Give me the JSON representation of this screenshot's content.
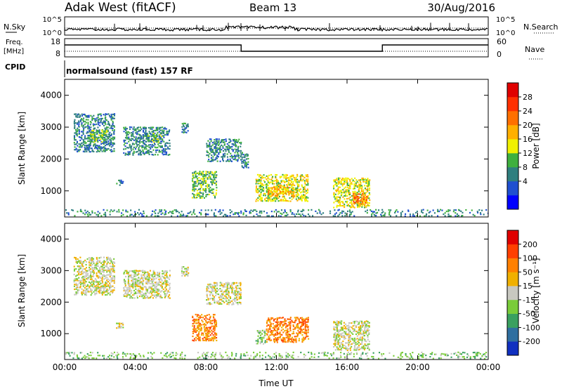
{
  "header": {
    "station": "Adak West (fitACF)",
    "beam": "Beam 13",
    "date": "30/Aug/2016"
  },
  "panels": {
    "nsky": {
      "left_label": "N.Sky",
      "right_label": "N.Search",
      "left_ticks": [
        "10^5",
        "10^0"
      ],
      "right_ticks": [
        "10^5",
        "10^0"
      ]
    },
    "freq": {
      "left_label_1": "Freq.",
      "left_label_2": "[MHz]",
      "right_label": "Nave",
      "left_ticks": [
        "18",
        "8"
      ],
      "right_ticks": [
        "60",
        "0"
      ]
    },
    "cpid": {
      "label": "CPID",
      "text": "normalsound (fast) 157 RF"
    }
  },
  "chart_data": [
    {
      "type": "heatmap",
      "name": "power",
      "ylabel": "Slant Range [km]",
      "xlabel": "Time UT",
      "x_ticks": [
        "00:00",
        "04:00",
        "08:00",
        "12:00",
        "16:00",
        "20:00",
        "00:00"
      ],
      "xlim_hours": [
        0,
        24
      ],
      "y_ticks": [
        1000,
        2000,
        3000,
        4000
      ],
      "ylim": [
        180,
        4500
      ],
      "colorbar_label": "Power [dB]",
      "colorbar_ticks": [
        "28",
        "24",
        "20",
        "16",
        "12",
        "8",
        "4"
      ],
      "colorbar_colors": [
        "#0000ff",
        "#1f4fd0",
        "#2f7f7f",
        "#3fb03f",
        "#f0f000",
        "#ffb000",
        "#ff7000",
        "#ff3000",
        "#e00000"
      ],
      "regions": [
        {
          "t0": 0.5,
          "t1": 2.8,
          "r0": 2200,
          "r1": 3400,
          "level": 2
        },
        {
          "t0": 1.4,
          "t1": 2.5,
          "r0": 2500,
          "r1": 2900,
          "level": 3
        },
        {
          "t0": 2.9,
          "t1": 3.3,
          "r0": 1150,
          "r1": 1350,
          "level": 2
        },
        {
          "t0": 3.3,
          "t1": 6.0,
          "r0": 2100,
          "r1": 3000,
          "level": 2
        },
        {
          "t0": 4.5,
          "t1": 5.5,
          "r0": 2500,
          "r1": 2800,
          "level": 3
        },
        {
          "t0": 6.6,
          "t1": 7.0,
          "r0": 2800,
          "r1": 3100,
          "level": 2
        },
        {
          "t0": 7.2,
          "t1": 8.6,
          "r0": 750,
          "r1": 1600,
          "level": 3
        },
        {
          "t0": 8.0,
          "t1": 10.0,
          "r0": 1900,
          "r1": 2600,
          "level": 2
        },
        {
          "t0": 10.0,
          "t1": 10.4,
          "r0": 1700,
          "r1": 2200,
          "level": 2
        },
        {
          "t0": 10.8,
          "t1": 13.8,
          "r0": 650,
          "r1": 1500,
          "level": 4
        },
        {
          "t0": 11.5,
          "t1": 13.0,
          "r0": 800,
          "r1": 1100,
          "level": 5
        },
        {
          "t0": 15.2,
          "t1": 17.3,
          "r0": 450,
          "r1": 1400,
          "level": 4
        },
        {
          "t0": 16.3,
          "t1": 17.1,
          "r0": 550,
          "r1": 900,
          "level": 6
        },
        {
          "t0": 0.0,
          "t1": 24.0,
          "r0": 180,
          "r1": 420,
          "level": 2
        }
      ]
    },
    {
      "type": "heatmap",
      "name": "velocity",
      "ylabel": "Slant Range [km]",
      "xlabel": "Time UT",
      "x_ticks": [
        "00:00",
        "04:00",
        "08:00",
        "12:00",
        "16:00",
        "20:00",
        "00:00"
      ],
      "xlim_hours": [
        0,
        24
      ],
      "y_ticks": [
        1000,
        2000,
        3000,
        4000
      ],
      "ylim": [
        180,
        4500
      ],
      "colorbar_label": "Velocity [m s⁻¹]",
      "colorbar_ticks": [
        "200",
        "100",
        "50",
        "15",
        "-15",
        "-50",
        "-100",
        "-200"
      ],
      "colorbar_colors": [
        "#1030c0",
        "#2f6fa0",
        "#3aa060",
        "#7acc3a",
        "#c8c8c0",
        "#f0b000",
        "#ff8000",
        "#ff4000",
        "#e00000"
      ],
      "regions": [
        {
          "t0": 0.5,
          "t1": 2.8,
          "r0": 2200,
          "r1": 3400,
          "level": 4
        },
        {
          "t0": 2.9,
          "t1": 3.3,
          "r0": 1150,
          "r1": 1350,
          "level": 4
        },
        {
          "t0": 3.3,
          "t1": 6.0,
          "r0": 2100,
          "r1": 3000,
          "level": 4
        },
        {
          "t0": 6.6,
          "t1": 7.0,
          "r0": 2800,
          "r1": 3100,
          "level": 4
        },
        {
          "t0": 7.2,
          "t1": 8.6,
          "r0": 750,
          "r1": 1600,
          "level": 6
        },
        {
          "t0": 8.0,
          "t1": 10.0,
          "r0": 1900,
          "r1": 2600,
          "level": 4
        },
        {
          "t0": 10.8,
          "t1": 11.4,
          "r0": 650,
          "r1": 1100,
          "level": 3
        },
        {
          "t0": 11.4,
          "t1": 13.8,
          "r0": 700,
          "r1": 1500,
          "level": 6
        },
        {
          "t0": 15.2,
          "t1": 17.3,
          "r0": 450,
          "r1": 1400,
          "level": 4
        },
        {
          "t0": 0.0,
          "t1": 24.0,
          "r0": 180,
          "r1": 420,
          "level": 3
        }
      ]
    }
  ]
}
